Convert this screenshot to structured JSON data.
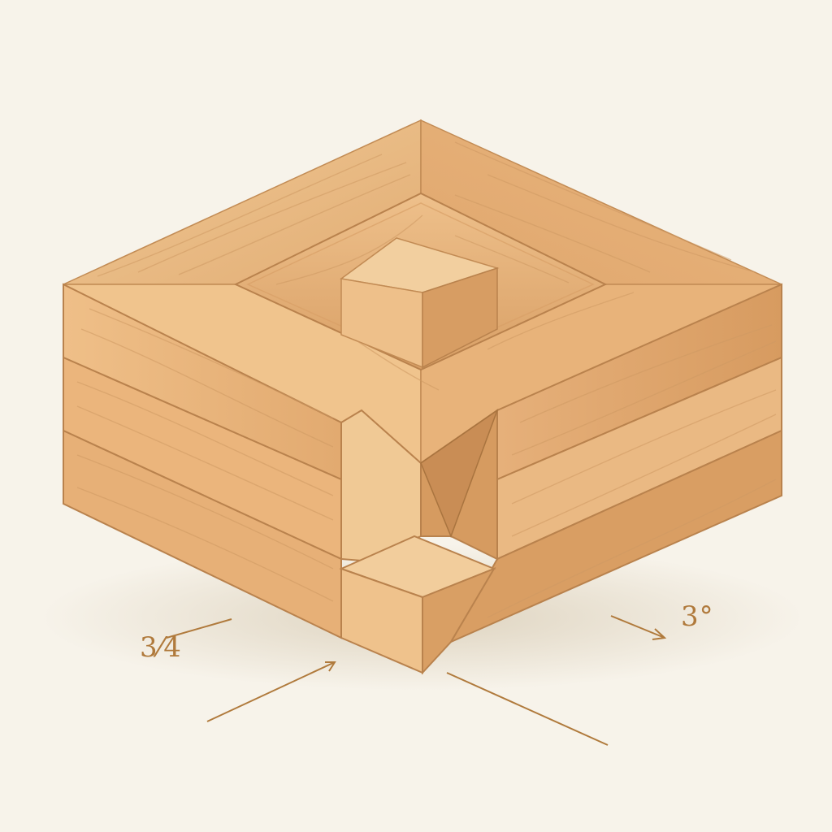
{
  "colors": {
    "background": "#f7f3ea",
    "wood_top": "#e7b680",
    "wood_top_light": "#f0c793",
    "wood_left": "#ebb67b",
    "wood_right": "#dfa56b",
    "wood_dark": "#c98d55",
    "seam": "#b9824d",
    "grain": "#cf9a63",
    "dimension": "#b07a3c"
  },
  "dimension_labels": {
    "left": "3⁄4",
    "right": "3°"
  }
}
